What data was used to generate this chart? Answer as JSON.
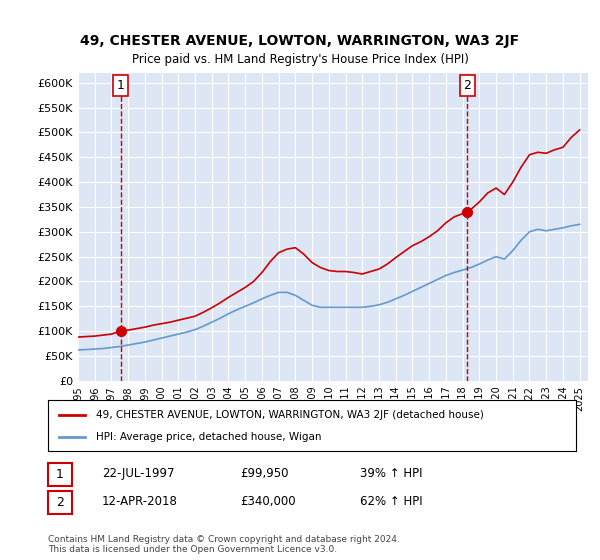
{
  "title": "49, CHESTER AVENUE, LOWTON, WARRINGTON, WA3 2JF",
  "subtitle": "Price paid vs. HM Land Registry's House Price Index (HPI)",
  "bg_color": "#dce6f5",
  "plot_bg_color": "#dce6f5",
  "fig_bg_color": "#ffffff",
  "red_line_color": "#cc0000",
  "blue_line_color": "#6699cc",
  "dashed_line_color": "#cc0000",
  "sale1_year": 1997.55,
  "sale1_price": 99950,
  "sale2_year": 2018.28,
  "sale2_price": 340000,
  "ylim": [
    0,
    620000
  ],
  "xlim_start": 1995,
  "xlim_end": 2025.5,
  "yticks": [
    0,
    50000,
    100000,
    150000,
    200000,
    250000,
    300000,
    350000,
    400000,
    450000,
    500000,
    550000,
    600000
  ],
  "ytick_labels": [
    "£0",
    "£50K",
    "£100K",
    "£150K",
    "£200K",
    "£250K",
    "£300K",
    "£350K",
    "£400K",
    "£450K",
    "£500K",
    "£550K",
    "£600K"
  ],
  "xticks": [
    1995,
    1996,
    1997,
    1998,
    1999,
    2000,
    2001,
    2002,
    2003,
    2004,
    2005,
    2006,
    2007,
    2008,
    2009,
    2010,
    2011,
    2012,
    2013,
    2014,
    2015,
    2016,
    2017,
    2018,
    2019,
    2020,
    2021,
    2022,
    2023,
    2024,
    2025
  ],
  "legend_red_label": "49, CHESTER AVENUE, LOWTON, WARRINGTON, WA3 2JF (detached house)",
  "legend_blue_label": "HPI: Average price, detached house, Wigan",
  "annotation1_label": "1",
  "annotation1_date": "22-JUL-1997",
  "annotation1_price": "£99,950",
  "annotation1_hpi": "39% ↑ HPI",
  "annotation2_label": "2",
  "annotation2_date": "12-APR-2018",
  "annotation2_price": "£340,000",
  "annotation2_hpi": "62% ↑ HPI",
  "footer": "Contains HM Land Registry data © Crown copyright and database right 2024.\nThis data is licensed under the Open Government Licence v3.0.",
  "red_x": [
    1995.0,
    1995.5,
    1996.0,
    1996.5,
    1997.0,
    1997.55,
    1998.0,
    1998.5,
    1999.0,
    1999.5,
    2000.0,
    2000.5,
    2001.0,
    2001.5,
    2002.0,
    2002.5,
    2003.0,
    2003.5,
    2004.0,
    2004.5,
    2005.0,
    2005.5,
    2006.0,
    2006.5,
    2007.0,
    2007.5,
    2008.0,
    2008.5,
    2009.0,
    2009.5,
    2010.0,
    2010.5,
    2011.0,
    2011.5,
    2012.0,
    2012.5,
    2013.0,
    2013.5,
    2014.0,
    2014.5,
    2015.0,
    2015.5,
    2016.0,
    2016.5,
    2017.0,
    2017.5,
    2018.28,
    2018.5,
    2019.0,
    2019.5,
    2020.0,
    2020.5,
    2021.0,
    2021.5,
    2022.0,
    2022.5,
    2023.0,
    2023.5,
    2024.0,
    2024.5,
    2025.0
  ],
  "red_y": [
    88000,
    89000,
    90000,
    92000,
    94000,
    99950,
    102000,
    105000,
    108000,
    112000,
    115000,
    118000,
    122000,
    126000,
    130000,
    138000,
    147000,
    157000,
    168000,
    178000,
    188000,
    200000,
    218000,
    240000,
    258000,
    265000,
    268000,
    255000,
    238000,
    228000,
    222000,
    220000,
    220000,
    218000,
    215000,
    220000,
    225000,
    235000,
    248000,
    260000,
    272000,
    280000,
    290000,
    302000,
    318000,
    330000,
    340000,
    345000,
    360000,
    378000,
    388000,
    375000,
    400000,
    430000,
    455000,
    460000,
    458000,
    465000,
    470000,
    490000,
    505000
  ],
  "blue_x": [
    1995.0,
    1995.5,
    1996.0,
    1996.5,
    1997.0,
    1997.5,
    1998.0,
    1998.5,
    1999.0,
    1999.5,
    2000.0,
    2000.5,
    2001.0,
    2001.5,
    2002.0,
    2002.5,
    2003.0,
    2003.5,
    2004.0,
    2004.5,
    2005.0,
    2005.5,
    2006.0,
    2006.5,
    2007.0,
    2007.5,
    2008.0,
    2008.5,
    2009.0,
    2009.5,
    2010.0,
    2010.5,
    2011.0,
    2011.5,
    2012.0,
    2012.5,
    2013.0,
    2013.5,
    2014.0,
    2014.5,
    2015.0,
    2015.5,
    2016.0,
    2016.5,
    2017.0,
    2017.5,
    2018.0,
    2018.5,
    2019.0,
    2019.5,
    2020.0,
    2020.5,
    2021.0,
    2021.5,
    2022.0,
    2022.5,
    2023.0,
    2023.5,
    2024.0,
    2024.5,
    2025.0
  ],
  "blue_y": [
    62000,
    63000,
    64000,
    65000,
    67000,
    69000,
    72000,
    75000,
    78000,
    82000,
    86000,
    90000,
    94000,
    98000,
    103000,
    110000,
    118000,
    126000,
    135000,
    143000,
    150000,
    157000,
    165000,
    172000,
    178000,
    178000,
    172000,
    162000,
    152000,
    148000,
    148000,
    148000,
    148000,
    148000,
    148000,
    150000,
    153000,
    158000,
    165000,
    172000,
    180000,
    188000,
    196000,
    204000,
    212000,
    218000,
    223000,
    228000,
    235000,
    243000,
    250000,
    245000,
    262000,
    283000,
    300000,
    305000,
    302000,
    305000,
    308000,
    312000,
    315000
  ]
}
